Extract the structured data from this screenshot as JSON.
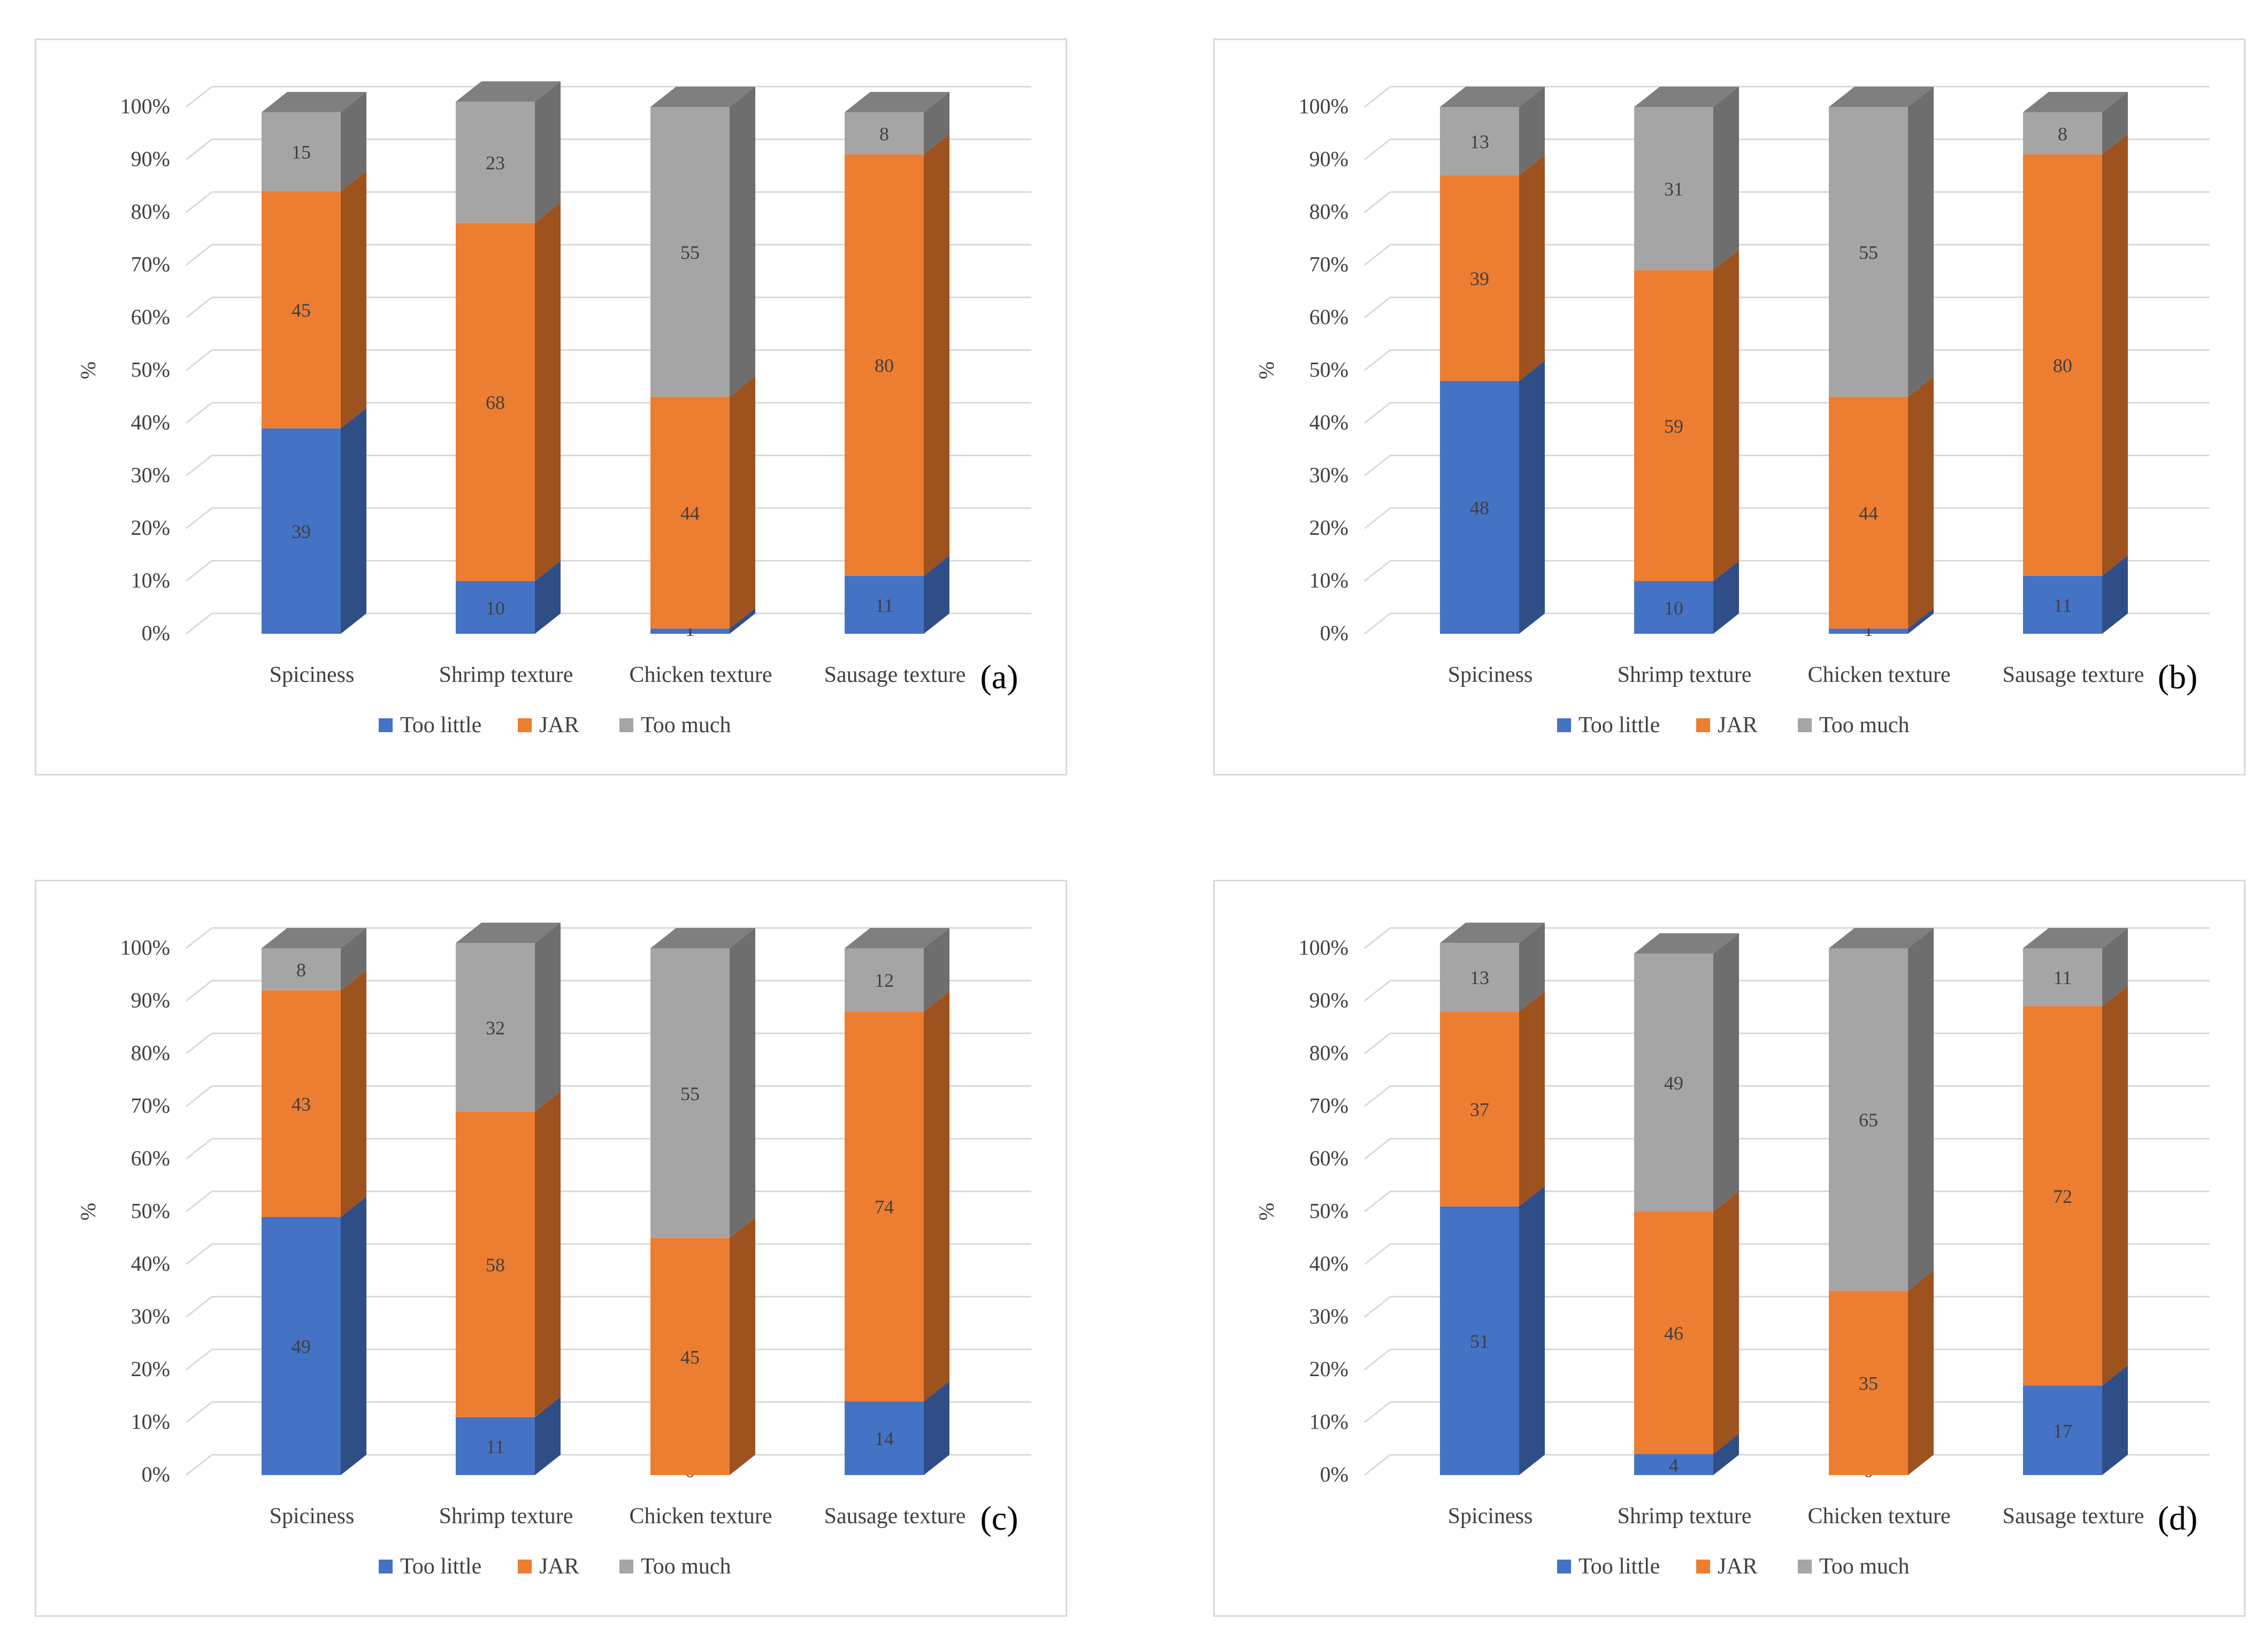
{
  "colors": {
    "too_little": "#4472C4",
    "jar": "#ED7D31",
    "too_much": "#A5A5A5",
    "too_little_side": "#2F4E86",
    "jar_side": "#9E521E",
    "too_much_side": "#6E6E6E",
    "too_little_top": "#5A86D0",
    "jar_top": "#F08E4B",
    "too_much_top": "#7F7F7F",
    "grid": "#d9d9d9"
  },
  "legend": [
    "Too little",
    "JAR",
    "Too much"
  ],
  "chart_data": [
    {
      "panel": "(a)",
      "type": "bar",
      "stacked": true,
      "percent_stacked": true,
      "categories": [
        "Spiciness",
        "Shrimp texture",
        "Chicken texture",
        "Sausage texture"
      ],
      "series": [
        {
          "name": "Too little",
          "values": [
            39,
            10,
            1,
            11
          ]
        },
        {
          "name": "JAR",
          "values": [
            45,
            68,
            44,
            80
          ]
        },
        {
          "name": "Too much",
          "values": [
            15,
            23,
            55,
            8
          ]
        }
      ],
      "ylabel": "%",
      "yticks": [
        "0%",
        "10%",
        "20%",
        "30%",
        "40%",
        "50%",
        "60%",
        "70%",
        "80%",
        "90%",
        "100%"
      ],
      "ylim": [
        0,
        100
      ],
      "legend_position": "bottom"
    },
    {
      "panel": "(b)",
      "type": "bar",
      "stacked": true,
      "percent_stacked": true,
      "categories": [
        "Spiciness",
        "Shrimp texture",
        "Chicken texture",
        "Sausage texture"
      ],
      "series": [
        {
          "name": "Too little",
          "values": [
            48,
            10,
            1,
            11
          ]
        },
        {
          "name": "JAR",
          "values": [
            39,
            59,
            44,
            80
          ]
        },
        {
          "name": "Too much",
          "values": [
            13,
            31,
            55,
            8
          ]
        }
      ],
      "ylabel": "%",
      "yticks": [
        "0%",
        "10%",
        "20%",
        "30%",
        "40%",
        "50%",
        "60%",
        "70%",
        "80%",
        "90%",
        "100%"
      ],
      "ylim": [
        0,
        100
      ],
      "legend_position": "bottom"
    },
    {
      "panel": "(c)",
      "type": "bar",
      "stacked": true,
      "percent_stacked": true,
      "categories": [
        "Spiciness",
        "Shrimp texture",
        "Chicken texture",
        "Sausage texture"
      ],
      "series": [
        {
          "name": "Too little",
          "values": [
            49,
            11,
            0,
            14
          ]
        },
        {
          "name": "JAR",
          "values": [
            43,
            58,
            45,
            74
          ]
        },
        {
          "name": "Too much",
          "values": [
            8,
            32,
            55,
            12
          ]
        }
      ],
      "ylabel": "%",
      "yticks": [
        "0%",
        "10%",
        "20%",
        "30%",
        "40%",
        "50%",
        "60%",
        "70%",
        "80%",
        "90%",
        "100%"
      ],
      "ylim": [
        0,
        100
      ],
      "legend_position": "bottom"
    },
    {
      "panel": "(d)",
      "type": "bar",
      "stacked": true,
      "percent_stacked": true,
      "categories": [
        "Spiciness",
        "Shrimp texture",
        "Chicken texture",
        "Sausage texture"
      ],
      "series": [
        {
          "name": "Too little",
          "values": [
            51,
            4,
            0,
            17
          ]
        },
        {
          "name": "JAR",
          "values": [
            37,
            46,
            35,
            72
          ]
        },
        {
          "name": "Too much",
          "values": [
            13,
            49,
            65,
            11
          ]
        }
      ],
      "ylabel": "%",
      "yticks": [
        "0%",
        "10%",
        "20%",
        "30%",
        "40%",
        "50%",
        "60%",
        "70%",
        "80%",
        "90%",
        "100%"
      ],
      "ylim": [
        0,
        100
      ],
      "legend_position": "bottom"
    }
  ]
}
